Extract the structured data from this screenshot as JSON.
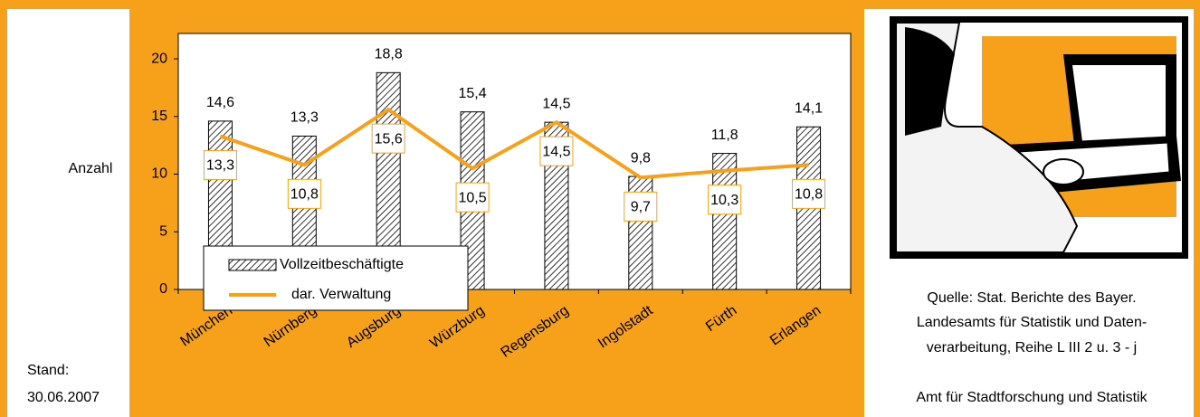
{
  "chart_data": {
    "type": "bar",
    "y_label": "Anzahl",
    "categories": [
      "München",
      "Nürnberg",
      "Augsburg",
      "Würzburg",
      "Regensburg",
      "Ingolstadt",
      "Fürth",
      "Erlangen"
    ],
    "series": [
      {
        "name": "Vollzeitbeschäftigte",
        "type": "bar",
        "color": "#000000",
        "values": [
          14.6,
          13.3,
          18.8,
          15.4,
          14.5,
          9.8,
          11.8,
          14.1
        ],
        "value_labels": [
          "14,6",
          "13,3",
          "18,8",
          "15,4",
          "14,5",
          "9,8",
          "11,8",
          "14,1"
        ]
      },
      {
        "name": "dar. Verwaltung",
        "type": "line",
        "color": "#f7a11a",
        "values": [
          13.3,
          10.8,
          15.6,
          10.5,
          14.5,
          9.7,
          10.3,
          10.8
        ],
        "value_labels": [
          "13,3",
          "10,8",
          "15,6",
          "10,5",
          "14,5",
          "9,7",
          "10,3",
          "10,8"
        ]
      }
    ],
    "ylim": [
      0,
      22.2
    ],
    "yticks": [
      0,
      5,
      10,
      15,
      20
    ],
    "stand": [
      "Stand:",
      "30.06.2007"
    ],
    "source": [
      "Quelle: Stat. Berichte des Bayer.",
      "Landesamts für Statistik und Daten-",
      "verarbeitung, Reihe L III 2 u. 3 - j"
    ],
    "credit": "Amt für Stadtforschung und Statistik"
  }
}
